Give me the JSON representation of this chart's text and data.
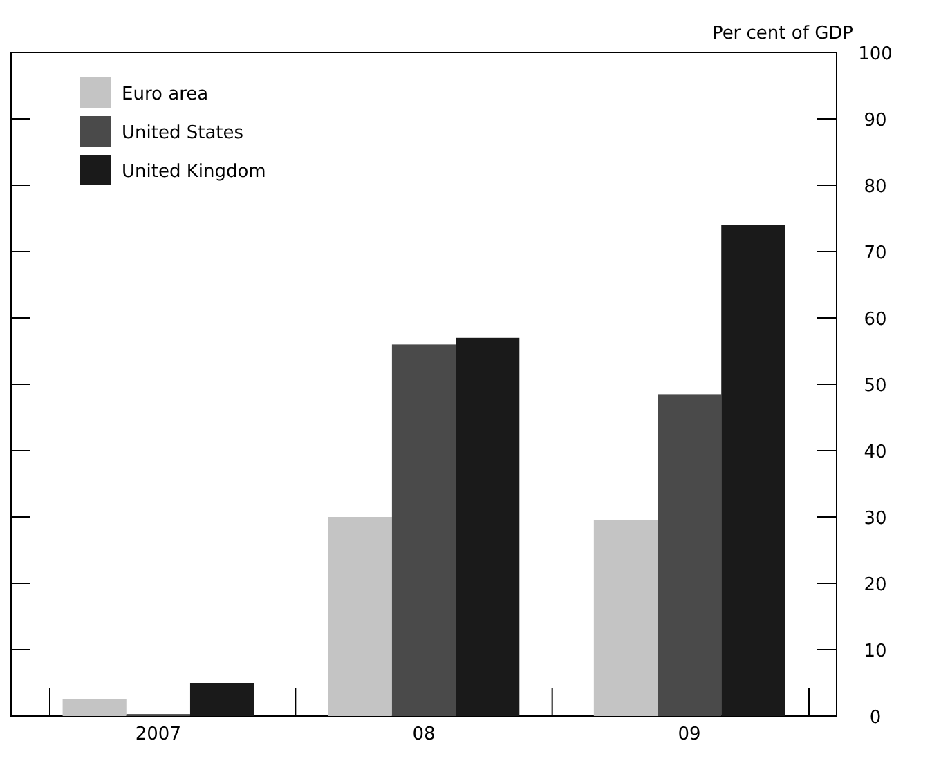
{
  "chart_data": {
    "type": "bar",
    "ylabel": "Per cent of GDP",
    "categories": [
      "2007",
      "08",
      "09"
    ],
    "series": [
      {
        "name": "Euro area",
        "color": "#c4c4c4",
        "values": [
          2.5,
          30,
          29.5
        ]
      },
      {
        "name": "United States",
        "color": "#4a4a4a",
        "values": [
          0.3,
          56,
          48.5
        ]
      },
      {
        "name": "United Kingdom",
        "color": "#1a1a1a",
        "values": [
          5,
          57,
          74
        ]
      }
    ],
    "ylim": [
      0,
      100
    ],
    "yticks": [
      0,
      10,
      20,
      30,
      40,
      50,
      60,
      70,
      80,
      90,
      100
    ],
    "legend": "top left"
  }
}
